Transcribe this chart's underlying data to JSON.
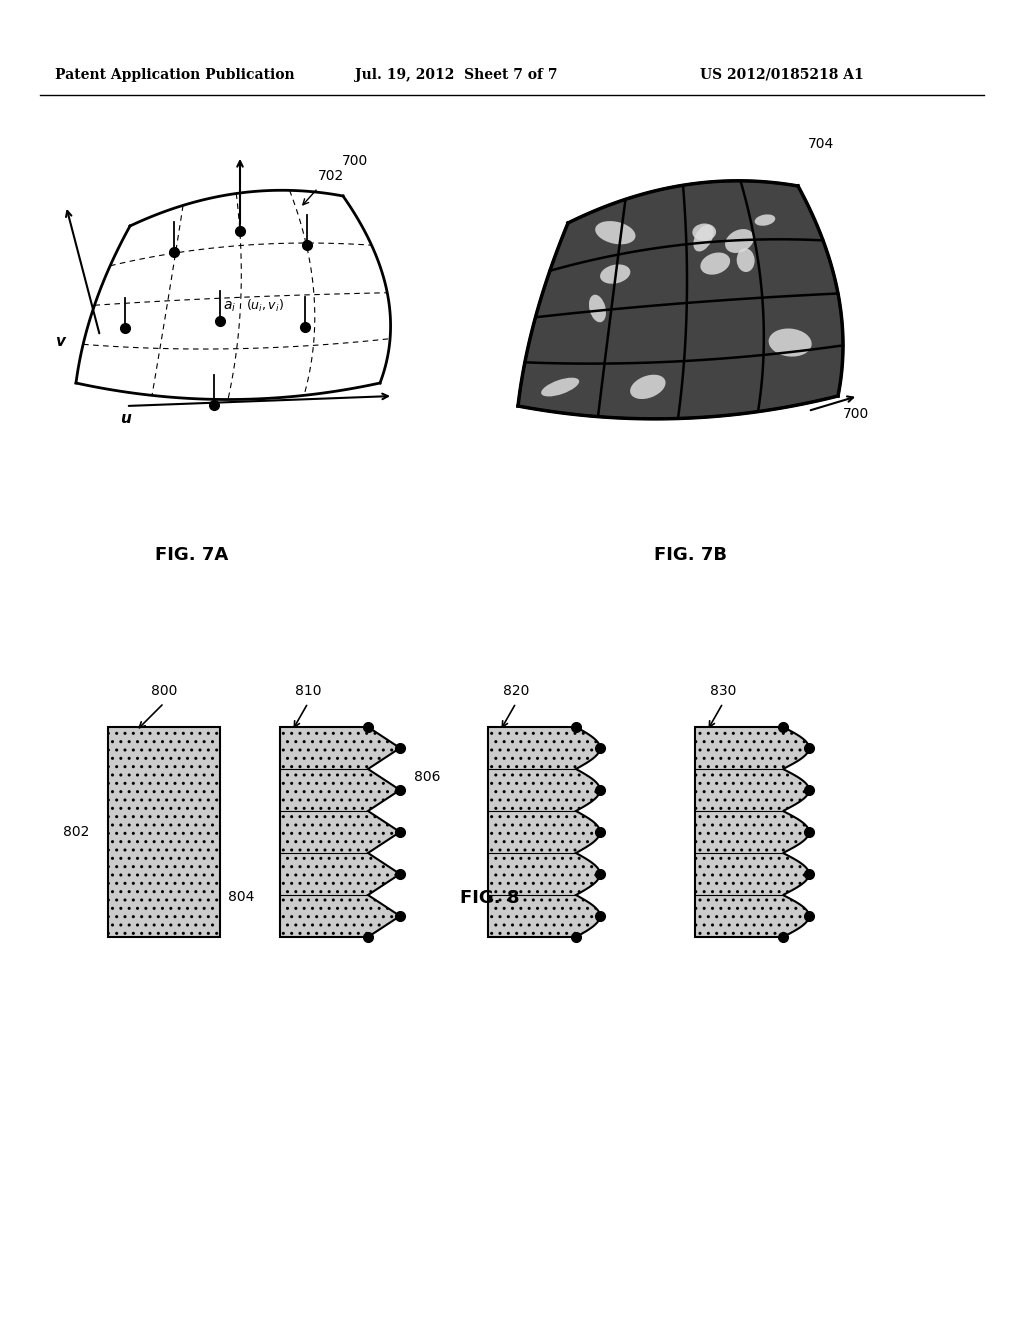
{
  "bg_color": "#ffffff",
  "header_left": "Patent Application Publication",
  "header_mid": "Jul. 19, 2012  Sheet 7 of 7",
  "header_right": "US 2012/0185218 A1",
  "fig7a_label": "FIG. 7A",
  "fig7b_label": "FIG. 7B",
  "fig8_label": "FIG. 8",
  "label_700a": "700",
  "label_702": "702",
  "label_700b": "700",
  "label_704": "704",
  "label_800": "800",
  "label_802": "802",
  "label_804": "804",
  "label_806": "806",
  "label_810": "810",
  "label_820": "820",
  "label_830": "830"
}
